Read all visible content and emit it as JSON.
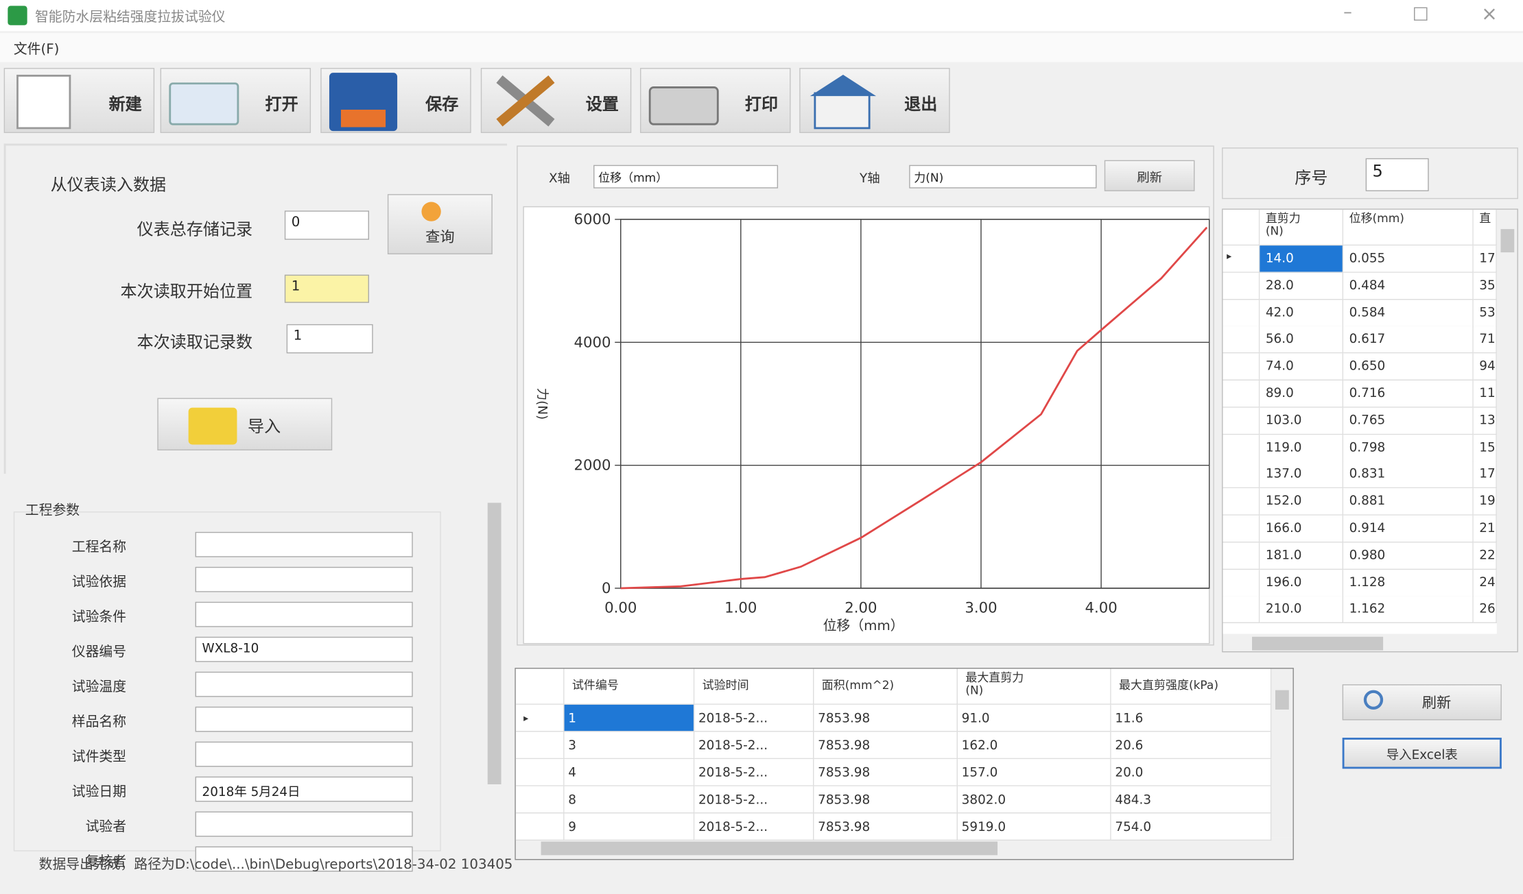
{
  "window": {
    "title": "智能防水层粘结强度拉拔试验仪"
  },
  "menu": [
    "文件(F)"
  ],
  "toolbar": [
    "新建",
    "打开",
    "保存",
    "设置",
    "打印",
    "退出"
  ],
  "read_panel": {
    "heading": "从仪表读入数据",
    "fields": [
      {
        "label": "仪表总存储记录",
        "value": "0"
      },
      {
        "label": "本次读取开始位置",
        "value": "1"
      },
      {
        "label": "本次读取记录数",
        "value": "1"
      }
    ],
    "query_button": "查询",
    "import_button": "导入"
  },
  "project": {
    "heading": "工程参数",
    "fields": [
      {
        "label": "工程名称"
      },
      {
        "label": "试验依据"
      },
      {
        "label": "试验条件"
      },
      {
        "label": "仪器编号",
        "value": "WXL8-10"
      },
      {
        "label": "试验温度"
      },
      {
        "label": "样品名称"
      },
      {
        "label": "试件类型"
      },
      {
        "label": "试验日期",
        "value": "2018年 5月24日"
      },
      {
        "label": "试验者"
      },
      {
        "label": "复核者"
      }
    ]
  },
  "chart_controls": {
    "x_label": "X轴",
    "x_select": "位移（mm）",
    "y_label": "Y轴",
    "y_select": "力(N)",
    "refresh": "刷新"
  },
  "chart_data": {
    "type": "line",
    "x_label": "位移（mm）",
    "y_label": "力(N)",
    "x": [
      0,
      0.5,
      1.0,
      1.2,
      1.5,
      2.0,
      2.5,
      3.0,
      3.5,
      3.8,
      4.0,
      4.5,
      4.88
    ],
    "series": [
      {
        "color": "#e04848",
        "values": [
          0,
          30,
          150,
          180,
          350,
          820,
          1430,
          2050,
          2830,
          3860,
          4200,
          5040,
          5870
        ]
      }
    ],
    "xlim": [
      0,
      4.9
    ],
    "ylim": [
      0,
      6000
    ],
    "xticks": [
      {
        "value": 0,
        "label": "0.00"
      },
      {
        "value": 1,
        "label": "1.00"
      },
      {
        "value": 2,
        "label": "2.00"
      },
      {
        "value": 3,
        "label": "3.00"
      },
      {
        "value": 4,
        "label": "4.00"
      }
    ],
    "yticks": [
      0,
      2000,
      4000,
      6000
    ],
    "grid": true
  },
  "detail": {
    "index_label": "序号",
    "index_value": "5",
    "columns": [
      "直剪力\n(N)",
      "位移(mm)",
      "直"
    ],
    "rows": [
      [
        "14.0",
        "0.055",
        "17"
      ],
      [
        "28.0",
        "0.484",
        "35"
      ],
      [
        "42.0",
        "0.584",
        "53"
      ],
      [
        "56.0",
        "0.617",
        "71"
      ],
      [
        "74.0",
        "0.650",
        "94"
      ],
      [
        "89.0",
        "0.716",
        "11"
      ],
      [
        "103.0",
        "0.765",
        "13"
      ],
      [
        "119.0",
        "0.798",
        "15"
      ],
      [
        "137.0",
        "0.831",
        "17"
      ],
      [
        "152.0",
        "0.881",
        "19"
      ],
      [
        "166.0",
        "0.914",
        "21"
      ],
      [
        "181.0",
        "0.980",
        "22"
      ],
      [
        "196.0",
        "1.128",
        "24"
      ],
      [
        "210.0",
        "1.162",
        "26"
      ]
    ]
  },
  "records": {
    "columns": [
      "试件编号",
      "试验时间",
      "面积(mm^2)",
      "最大直剪力\n(N)",
      "最大直剪强度(kPa)"
    ],
    "rows": [
      [
        "1",
        "2018-5-2...",
        "7853.98",
        "91.0",
        "11.6"
      ],
      [
        "3",
        "2018-5-2...",
        "7853.98",
        "162.0",
        "20.6"
      ],
      [
        "4",
        "2018-5-2...",
        "7853.98",
        "157.0",
        "20.0"
      ],
      [
        "8",
        "2018-5-2...",
        "7853.98",
        "3802.0",
        "484.3"
      ],
      [
        "9",
        "2018-5-2...",
        "7853.98",
        "5919.0",
        "754.0"
      ]
    ]
  },
  "actions": [
    "刷新",
    "导入Excel表"
  ],
  "status": "数据导出完成，路径为D:\\code\\...\\bin\\Debug\\reports\\2018-34-02 103405"
}
